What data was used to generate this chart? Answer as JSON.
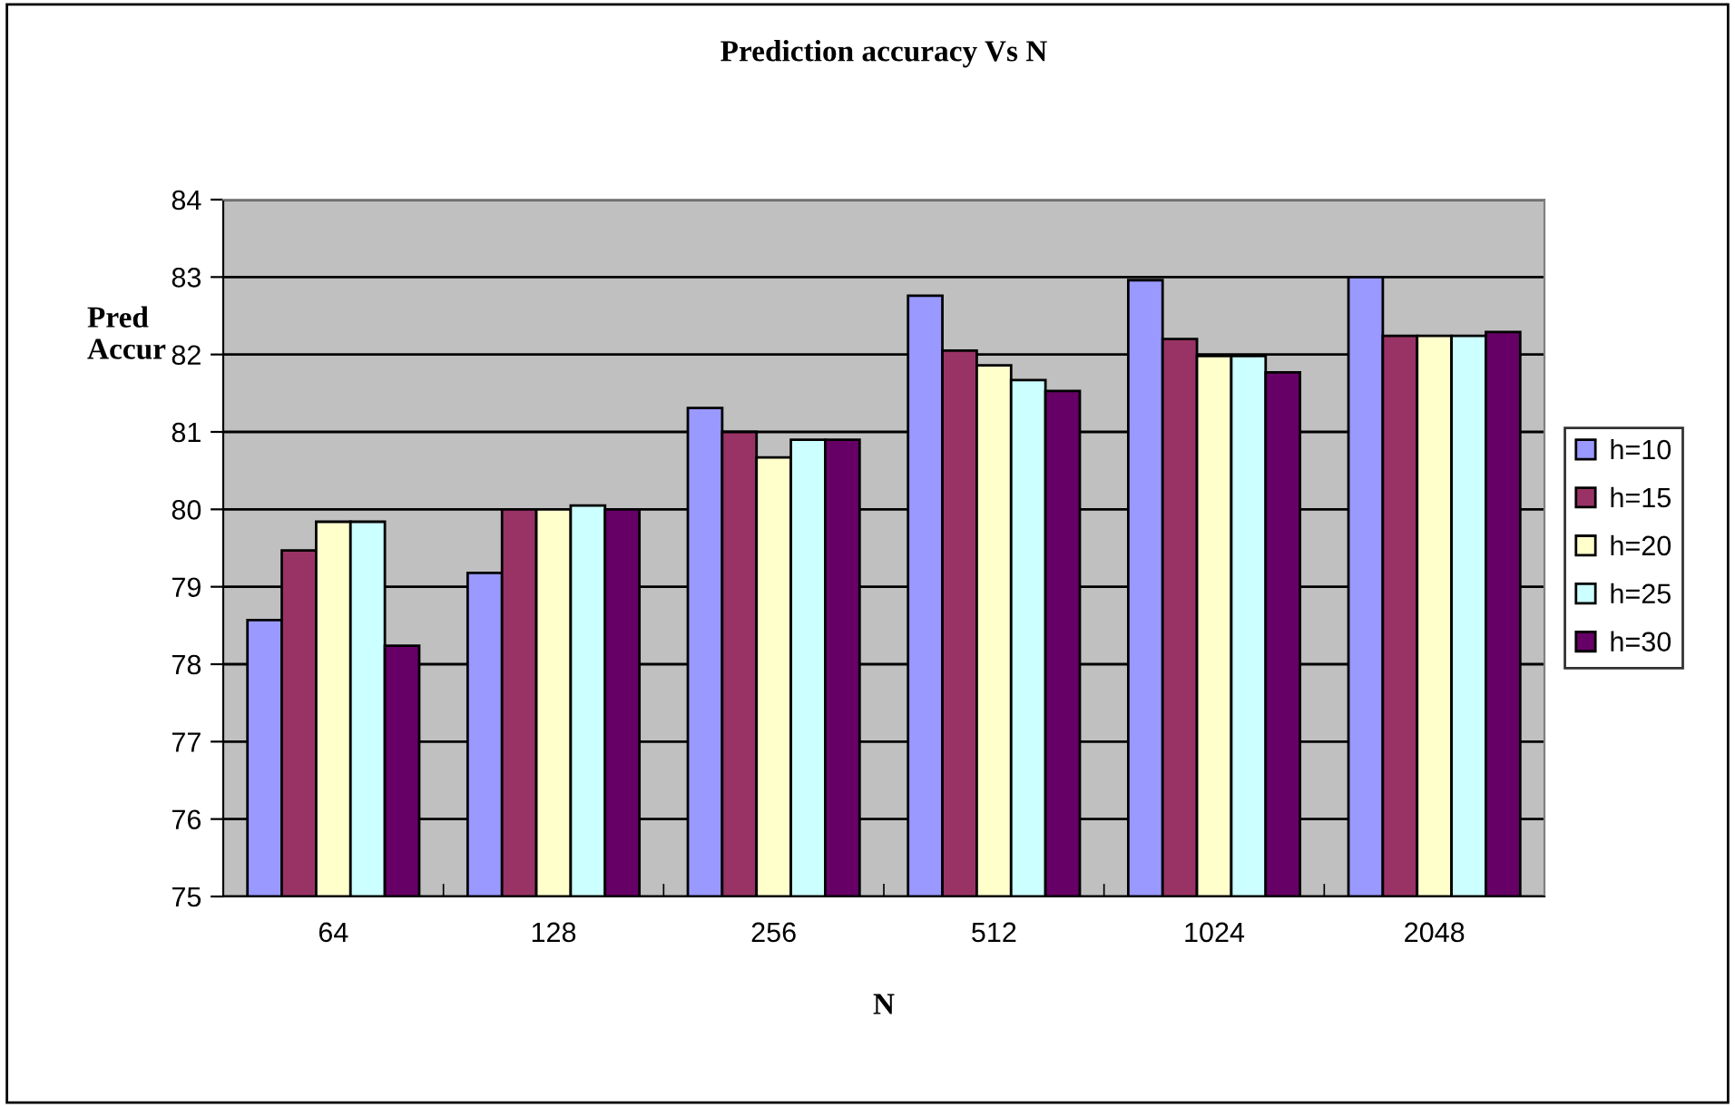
{
  "chart_data": {
    "type": "bar",
    "title": "Prediction accuracy Vs N",
    "xlabel": "N",
    "ylabel": "Pred\nAccur",
    "categories": [
      "64",
      "128",
      "256",
      "512",
      "1024",
      "2048"
    ],
    "series": [
      {
        "name": "h=10",
        "color": "#9999ff",
        "values": [
          78.57,
          79.18,
          81.31,
          82.76,
          82.96,
          83.0
        ]
      },
      {
        "name": "h=15",
        "color": "#993366",
        "values": [
          79.47,
          80.0,
          81.0,
          82.05,
          82.2,
          82.24
        ]
      },
      {
        "name": "h=20",
        "color": "#ffffcc",
        "values": [
          79.84,
          80.0,
          80.67,
          81.86,
          81.98,
          82.24
        ]
      },
      {
        "name": "h=25",
        "color": "#ccffff",
        "values": [
          79.84,
          80.05,
          80.9,
          81.67,
          81.98,
          82.24
        ]
      },
      {
        "name": "h=30",
        "color": "#660066",
        "values": [
          78.24,
          80.0,
          80.9,
          81.53,
          81.77,
          82.29
        ]
      }
    ],
    "ylim": [
      75,
      84
    ],
    "yticks": [
      75,
      76,
      77,
      78,
      79,
      80,
      81,
      82,
      83,
      84
    ],
    "grid": "y",
    "legend": "right"
  }
}
